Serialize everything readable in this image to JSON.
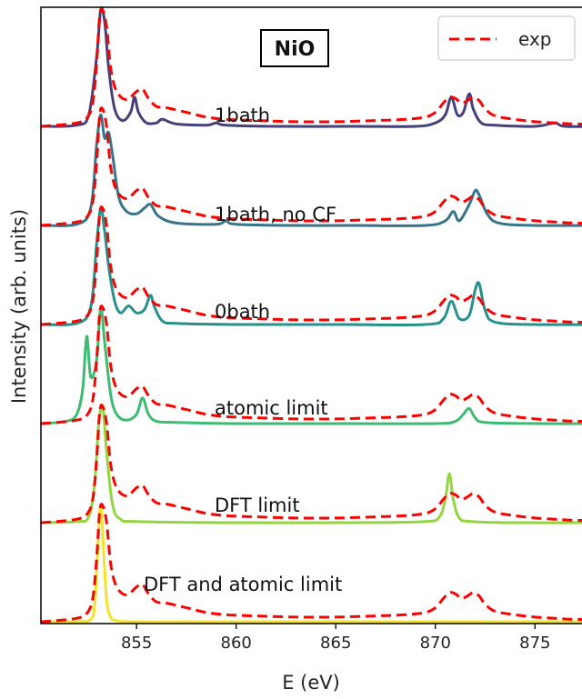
{
  "chart_data": {
    "type": "line",
    "title": "NiO",
    "xlabel": "E   (eV)",
    "ylabel": "Intensity (arb. units)",
    "xlim": [
      850.2,
      878.5
    ],
    "xticks": [
      855,
      860,
      865,
      870,
      875
    ],
    "yticks": [],
    "grid": false,
    "legend": {
      "position": "top-right",
      "entries": [
        {
          "name": "exp",
          "color": "#ff0000",
          "style": "dashed"
        }
      ]
    },
    "offsets": [
      5,
      4,
      3,
      2,
      1,
      0
    ],
    "exp_color": "#ff0000",
    "exp_x": [
      850.2,
      851.0,
      852.0,
      852.5,
      852.8,
      853.0,
      853.15,
      853.3,
      853.5,
      853.7,
      854.0,
      854.5,
      855.0,
      855.3,
      855.6,
      856.0,
      856.5,
      857.5,
      858.5,
      859.5,
      861.0,
      863.0,
      865.0,
      867.0,
      868.5,
      869.5,
      870.0,
      870.4,
      870.7,
      871.0,
      871.3,
      871.6,
      871.9,
      872.2,
      872.5,
      873.0,
      874.0,
      875.0,
      876.0,
      877.0,
      878.5
    ],
    "exp_y": [
      0.0,
      0.01,
      0.03,
      0.07,
      0.2,
      0.55,
      0.95,
      1.0,
      0.85,
      0.5,
      0.3,
      0.23,
      0.3,
      0.32,
      0.24,
      0.17,
      0.16,
      0.12,
      0.08,
      0.06,
      0.05,
      0.04,
      0.04,
      0.05,
      0.06,
      0.08,
      0.12,
      0.2,
      0.25,
      0.24,
      0.2,
      0.22,
      0.25,
      0.22,
      0.15,
      0.09,
      0.06,
      0.04,
      0.03,
      0.02,
      0.02
    ],
    "series": [
      {
        "label": "1bath",
        "color": "#46407a",
        "x": [
          850.2,
          852.0,
          852.6,
          853.0,
          853.2,
          853.4,
          853.6,
          853.9,
          854.3,
          854.7,
          854.9,
          855.1,
          855.5,
          856.0,
          856.3,
          857.0,
          858.5,
          859.0,
          859.5,
          862.0,
          866.0,
          869.0,
          870.0,
          870.5,
          870.8,
          871.1,
          871.4,
          871.7,
          871.9,
          872.3,
          873.0,
          875.0,
          876.0,
          876.5,
          878.5
        ],
        "y": [
          0.0,
          0.01,
          0.1,
          0.6,
          1.0,
          0.9,
          0.5,
          0.15,
          0.05,
          0.12,
          0.25,
          0.12,
          0.03,
          0.03,
          0.06,
          0.02,
          0.01,
          0.03,
          0.01,
          0.0,
          0.0,
          0.0,
          0.03,
          0.1,
          0.25,
          0.1,
          0.12,
          0.28,
          0.15,
          0.03,
          0.01,
          0.0,
          0.03,
          0.0,
          0.0
        ]
      },
      {
        "label": "1bath, no CF",
        "color": "#38758a",
        "x": [
          850.2,
          852.0,
          852.7,
          853.0,
          853.2,
          853.4,
          853.6,
          853.8,
          854.1,
          854.5,
          855.0,
          855.4,
          855.7,
          856.1,
          857.0,
          859.0,
          859.5,
          860.0,
          863.0,
          866.0,
          869.5,
          870.5,
          870.9,
          871.2,
          871.7,
          872.0,
          872.2,
          872.6,
          873.2,
          875.0,
          878.5
        ],
        "y": [
          0.0,
          0.01,
          0.15,
          0.7,
          0.95,
          0.75,
          0.8,
          0.6,
          0.25,
          0.12,
          0.1,
          0.15,
          0.18,
          0.08,
          0.02,
          0.01,
          0.04,
          0.01,
          0.0,
          0.0,
          0.0,
          0.04,
          0.12,
          0.04,
          0.18,
          0.3,
          0.26,
          0.1,
          0.02,
          0.0,
          0.0
        ]
      },
      {
        "label": "0bath",
        "color": "#25908c",
        "x": [
          850.2,
          852.0,
          852.7,
          853.0,
          853.2,
          853.4,
          853.6,
          853.9,
          854.2,
          854.6,
          855.0,
          855.4,
          855.7,
          855.9,
          856.3,
          857.0,
          860.0,
          865.0,
          869.5,
          870.4,
          870.8,
          871.2,
          871.7,
          872.0,
          872.2,
          872.5,
          873.0,
          875.0,
          878.5
        ],
        "y": [
          0.0,
          0.01,
          0.15,
          0.7,
          1.0,
          0.8,
          0.5,
          0.2,
          0.1,
          0.16,
          0.1,
          0.13,
          0.25,
          0.15,
          0.03,
          0.01,
          0.0,
          0.0,
          0.0,
          0.05,
          0.2,
          0.05,
          0.08,
          0.3,
          0.35,
          0.12,
          0.02,
          0.0,
          0.0
        ]
      },
      {
        "label": "atomic limit",
        "color": "#3dbb73",
        "x": [
          850.2,
          851.5,
          852.0,
          852.3,
          852.5,
          852.7,
          853.0,
          853.2,
          853.4,
          853.7,
          854.0,
          854.5,
          855.0,
          855.3,
          855.6,
          856.0,
          857.0,
          860.0,
          865.0,
          870.0,
          871.0,
          871.4,
          871.7,
          872.0,
          872.5,
          875.0,
          878.5
        ],
        "y": [
          0.0,
          0.02,
          0.08,
          0.3,
          0.75,
          0.4,
          0.55,
          1.0,
          0.7,
          0.25,
          0.08,
          0.03,
          0.08,
          0.22,
          0.08,
          0.02,
          0.01,
          0.0,
          0.0,
          0.0,
          0.02,
          0.08,
          0.13,
          0.05,
          0.01,
          0.0,
          0.0
        ]
      },
      {
        "label": "DFT limit",
        "color": "#93d441",
        "x": [
          850.2,
          852.0,
          852.6,
          852.9,
          853.1,
          853.3,
          853.5,
          853.8,
          854.2,
          855.0,
          860.0,
          866.0,
          869.5,
          870.2,
          870.5,
          870.7,
          870.9,
          871.2,
          871.8,
          874.0,
          878.5
        ],
        "y": [
          0.0,
          0.01,
          0.05,
          0.35,
          0.85,
          1.0,
          0.6,
          0.15,
          0.03,
          0.01,
          0.0,
          0.0,
          0.01,
          0.05,
          0.2,
          0.42,
          0.2,
          0.04,
          0.01,
          0.0,
          0.0
        ]
      },
      {
        "label": "DFT and atomic limit",
        "color": "#f6e226",
        "x": [
          850.2,
          852.0,
          852.7,
          852.9,
          853.05,
          853.2,
          853.35,
          853.5,
          853.7,
          854.0,
          855.0,
          860.0,
          878.5
        ],
        "y": [
          0.0,
          0.0,
          0.02,
          0.15,
          0.6,
          1.0,
          0.6,
          0.18,
          0.04,
          0.01,
          0.0,
          0.0,
          0.0
        ]
      }
    ]
  }
}
